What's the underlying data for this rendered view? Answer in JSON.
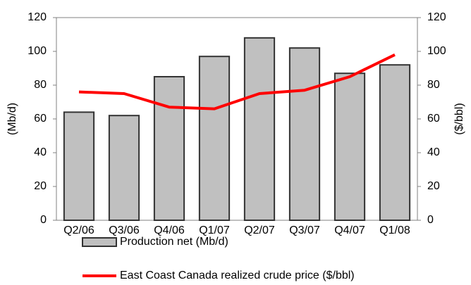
{
  "chart_data": {
    "type": "bar",
    "categories": [
      "Q2/06",
      "Q3/06",
      "Q4/06",
      "Q1/07",
      "Q2/07",
      "Q3/07",
      "Q4/07",
      "Q1/08"
    ],
    "series": [
      {
        "name": "Production net (Mb/d)",
        "type": "bar",
        "color": "#c0c0c0",
        "values": [
          64,
          62,
          85,
          97,
          108,
          102,
          87,
          92
        ]
      },
      {
        "name": "East Coast Canada realized crude price ($/bbl)",
        "type": "line",
        "axis": "y2",
        "color": "#ff0000",
        "values": [
          76,
          75,
          67,
          66,
          75,
          77,
          85,
          98
        ]
      }
    ],
    "ylabel": "(Mb/d)",
    "y2label": "($/bbl)",
    "ylim": [
      0,
      120
    ],
    "yticks": [
      0,
      20,
      40,
      60,
      80,
      100,
      120
    ],
    "y2lim": [
      0,
      120
    ],
    "y2ticks": [
      0,
      20,
      40,
      60,
      80,
      100,
      120
    ]
  }
}
